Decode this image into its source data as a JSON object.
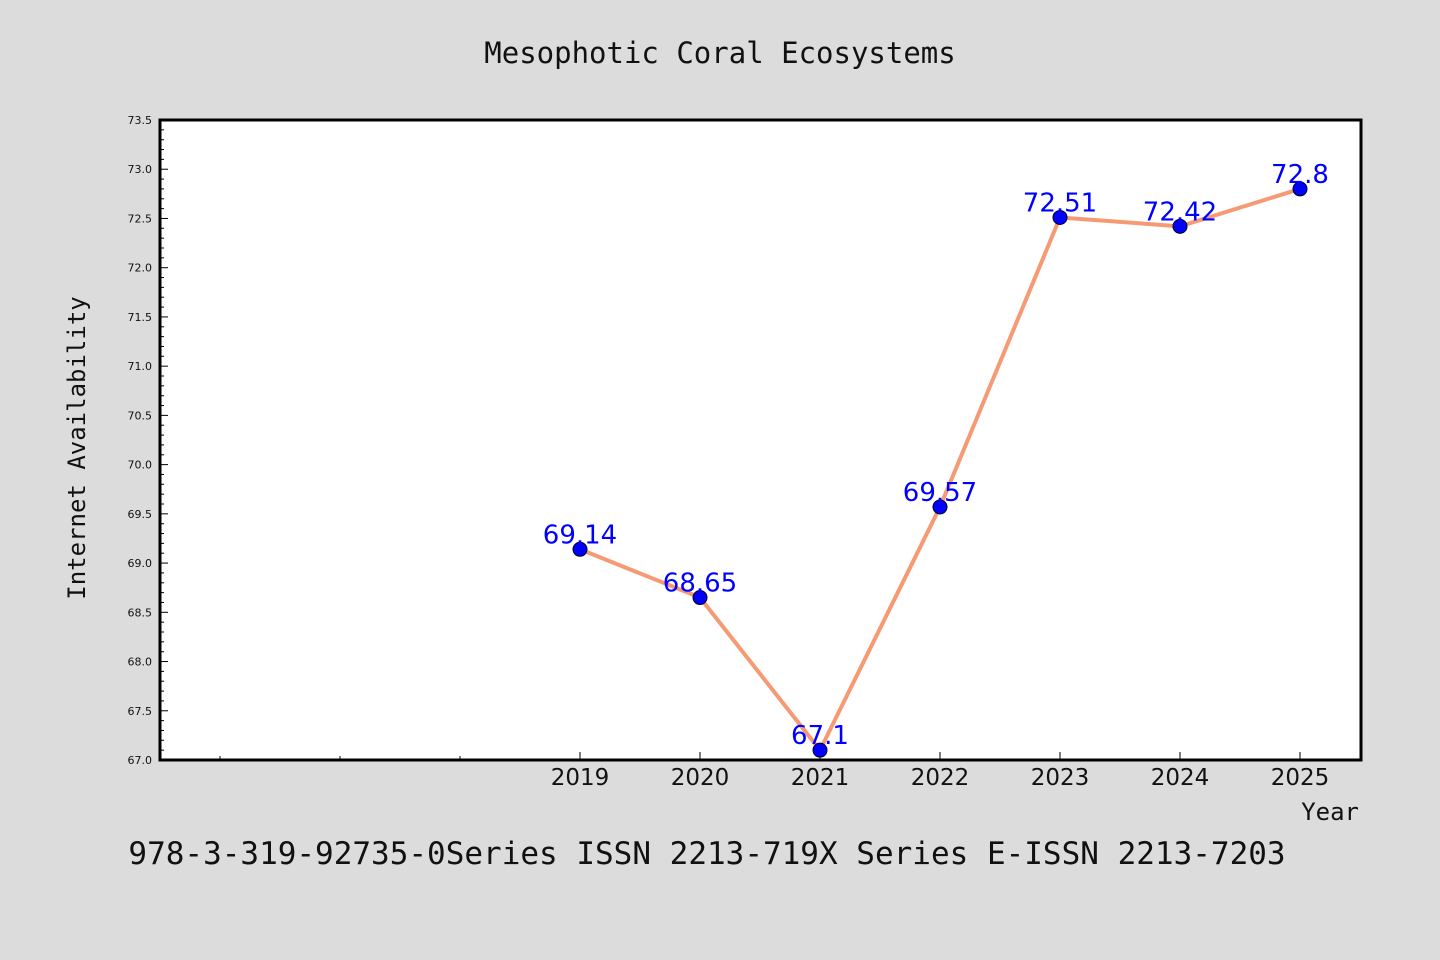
{
  "chart_data": {
    "type": "line",
    "title": "Mesophotic Coral Ecosystems",
    "xlabel": "Year",
    "ylabel": "Internet Availability",
    "categories": [
      "2019",
      "2020",
      "2021",
      "2022",
      "2023",
      "2024",
      "2025"
    ],
    "series": [
      {
        "values": [
          69.14,
          68.65,
          67.1,
          69.57,
          72.51,
          72.42,
          72.8
        ],
        "data_labels": [
          "69.14",
          "68.65",
          "67.1",
          "69.57",
          "72.51",
          "72.42",
          "72.8"
        ],
        "line_color": "#f59a74",
        "marker_color": "#0000ff"
      }
    ],
    "ylim": [
      67.0,
      73.5
    ],
    "yticks": [
      "67.0",
      "67.5",
      "68.0",
      "68.5",
      "69.0",
      "69.5",
      "70.0",
      "70.5",
      "71.0",
      "71.5",
      "72.0",
      "72.5",
      "73.0",
      "73.5"
    ],
    "grid": false,
    "legend": "none"
  },
  "footer": {
    "text": "978-3-319-92735-0Series ISSN 2213-719X Series E-ISSN 2213-7203"
  },
  "colors": {
    "background": "#dcdcdc",
    "plot_area": "#ffffff"
  }
}
